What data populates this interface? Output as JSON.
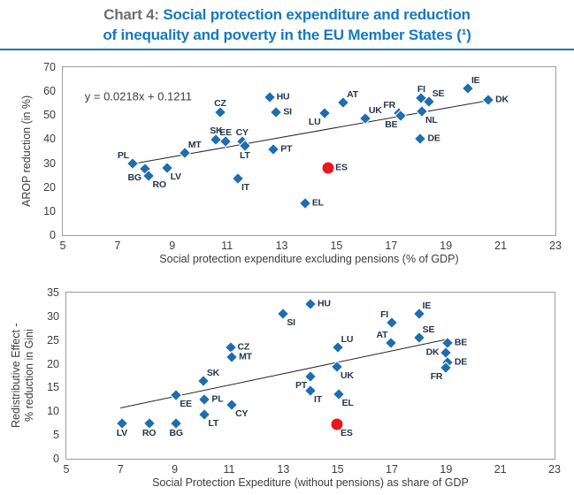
{
  "header": {
    "prefix": "Chart 4:",
    "title_line1": "Social protection expenditure and reduction",
    "title_line2": "of inequality and poverty in the EU Member States (¹)"
  },
  "colors": {
    "accent_blue": "#1778be",
    "marker_blue": "#1f6cb0",
    "marker_red": "#e8191d",
    "trend_line": "#262626"
  },
  "chart_data": [
    {
      "type": "scatter",
      "xlabel": "Social protection expenditure excluding pensions (% of GDP)",
      "ylabel": "AROP reduction (in %)",
      "xlim": [
        5,
        23
      ],
      "ylim": [
        0,
        70
      ],
      "xticks": [
        5,
        7,
        9,
        11,
        13,
        15,
        17,
        19,
        21,
        23
      ],
      "yticks": [
        0,
        10,
        20,
        30,
        40,
        50,
        60,
        70
      ],
      "grid": false,
      "equation": "y = 0.0218x + 0.1211",
      "equation_pos": {
        "x": 5.8,
        "y": 58
      },
      "trend": {
        "x1": 7.7,
        "y1": 30.2,
        "x2": 20.6,
        "y2": 56.4
      },
      "points": [
        {
          "label": "PL",
          "x": 7.55,
          "y": 29.8,
          "pos": "above-left"
        },
        {
          "label": "BG",
          "x": 8.0,
          "y": 27.6,
          "pos": "below-left"
        },
        {
          "label": "RO",
          "x": 8.15,
          "y": 24.7,
          "pos": "below-right"
        },
        {
          "label": "LV",
          "x": 8.8,
          "y": 28.0,
          "pos": "below-right"
        },
        {
          "label": "MT",
          "x": 9.45,
          "y": 34.3,
          "pos": "above-right"
        },
        {
          "label": "SK",
          "x": 10.6,
          "y": 39.7,
          "pos": "above"
        },
        {
          "label": "EE",
          "x": 10.95,
          "y": 39.2,
          "pos": "above"
        },
        {
          "label": "CY",
          "x": 11.55,
          "y": 39.2,
          "pos": "above"
        },
        {
          "label": "LT",
          "x": 11.65,
          "y": 37.2,
          "pos": "below"
        },
        {
          "label": "CZ",
          "x": 10.75,
          "y": 51.2,
          "pos": "above"
        },
        {
          "label": "SI",
          "x": 12.8,
          "y": 51.1,
          "pos": "right"
        },
        {
          "label": "HU",
          "x": 12.55,
          "y": 57.6,
          "pos": "right"
        },
        {
          "label": "PT",
          "x": 12.7,
          "y": 35.9,
          "pos": "right"
        },
        {
          "label": "IT",
          "x": 11.4,
          "y": 23.7,
          "pos": "below-right"
        },
        {
          "label": "EL",
          "x": 13.85,
          "y": 13.4,
          "pos": "right"
        },
        {
          "label": "ES",
          "x": 14.7,
          "y": 28.0,
          "pos": "right",
          "marker": "circle",
          "color": "red"
        },
        {
          "label": "LU",
          "x": 14.55,
          "y": 50.9,
          "pos": "below-left"
        },
        {
          "label": "AT",
          "x": 15.25,
          "y": 55.2,
          "pos": "above-right"
        },
        {
          "label": "UK",
          "x": 16.05,
          "y": 48.6,
          "pos": "above-right"
        },
        {
          "label": "FR",
          "x": 17.28,
          "y": 50.8,
          "pos": "above-left"
        },
        {
          "label": "BE",
          "x": 17.36,
          "y": 49.9,
          "pos": "below-left"
        },
        {
          "label": "FI",
          "x": 18.1,
          "y": 57.0,
          "pos": "above"
        },
        {
          "label": "SE",
          "x": 18.37,
          "y": 55.5,
          "pos": "above-right"
        },
        {
          "label": "NL",
          "x": 18.12,
          "y": 51.5,
          "pos": "below-right"
        },
        {
          "label": "DE",
          "x": 18.07,
          "y": 40.1,
          "pos": "right"
        },
        {
          "label": "IE",
          "x": 19.8,
          "y": 61.0,
          "pos": "above-right"
        },
        {
          "label": "DK",
          "x": 20.55,
          "y": 56.2,
          "pos": "right"
        }
      ]
    },
    {
      "type": "scatter",
      "xlabel": "Social Protection Expediture (without pensions) as share of GDP",
      "ylabel": "Redistributive Effect -\n% reduction in Gini",
      "xlim": [
        5,
        23
      ],
      "ylim": [
        0,
        35
      ],
      "xticks": [
        5,
        7,
        9,
        11,
        13,
        15,
        17,
        19,
        21,
        23
      ],
      "yticks": [
        0,
        5,
        10,
        15,
        20,
        25,
        30,
        35
      ],
      "grid": false,
      "trend": {
        "x1": 7.0,
        "y1": 10.8,
        "x2": 19.0,
        "y2": 25.2
      },
      "points": [
        {
          "label": "LV",
          "x": 7.05,
          "y": 7.4,
          "pos": "below"
        },
        {
          "label": "RO",
          "x": 8.05,
          "y": 7.4,
          "pos": "below"
        },
        {
          "label": "BG",
          "x": 9.05,
          "y": 7.4,
          "pos": "below"
        },
        {
          "label": "EE",
          "x": 9.05,
          "y": 13.4,
          "pos": "below-right"
        },
        {
          "label": "SK",
          "x": 10.05,
          "y": 16.4,
          "pos": "above-right"
        },
        {
          "label": "PL",
          "x": 10.1,
          "y": 12.4,
          "pos": "right"
        },
        {
          "label": "LT",
          "x": 10.1,
          "y": 9.4,
          "pos": "below-right"
        },
        {
          "label": "CZ",
          "x": 11.05,
          "y": 23.4,
          "pos": "right"
        },
        {
          "label": "MT",
          "x": 11.1,
          "y": 21.4,
          "pos": "right"
        },
        {
          "label": "CY",
          "x": 11.1,
          "y": 11.4,
          "pos": "below-right"
        },
        {
          "label": "SI",
          "x": 13.0,
          "y": 30.6,
          "pos": "below-right"
        },
        {
          "label": "HU",
          "x": 14.0,
          "y": 32.5,
          "pos": "right"
        },
        {
          "label": "LU",
          "x": 15.0,
          "y": 23.5,
          "pos": "above-right"
        },
        {
          "label": "UK",
          "x": 14.98,
          "y": 19.3,
          "pos": "below-right"
        },
        {
          "label": "PT",
          "x": 14.0,
          "y": 17.3,
          "pos": "below-left"
        },
        {
          "label": "IT",
          "x": 14.0,
          "y": 14.3,
          "pos": "below-right"
        },
        {
          "label": "EL",
          "x": 15.03,
          "y": 13.5,
          "pos": "below-right"
        },
        {
          "label": "ES",
          "x": 14.98,
          "y": 7.2,
          "pos": "below-right",
          "marker": "circle",
          "color": "red"
        },
        {
          "label": "FI",
          "x": 17.0,
          "y": 28.6,
          "pos": "above-left"
        },
        {
          "label": "AT",
          "x": 16.98,
          "y": 24.4,
          "pos": "above-left"
        },
        {
          "label": "IE",
          "x": 18.0,
          "y": 30.5,
          "pos": "above-right"
        },
        {
          "label": "SE",
          "x": 18.0,
          "y": 25.5,
          "pos": "above-right"
        },
        {
          "label": "BE",
          "x": 19.05,
          "y": 24.3,
          "pos": "right"
        },
        {
          "label": "DK",
          "x": 19.0,
          "y": 22.3,
          "pos": "left"
        },
        {
          "label": "DE",
          "x": 19.05,
          "y": 20.3,
          "pos": "right"
        },
        {
          "label": "FR",
          "x": 19.0,
          "y": 19.2,
          "pos": "below-left"
        }
      ]
    }
  ]
}
